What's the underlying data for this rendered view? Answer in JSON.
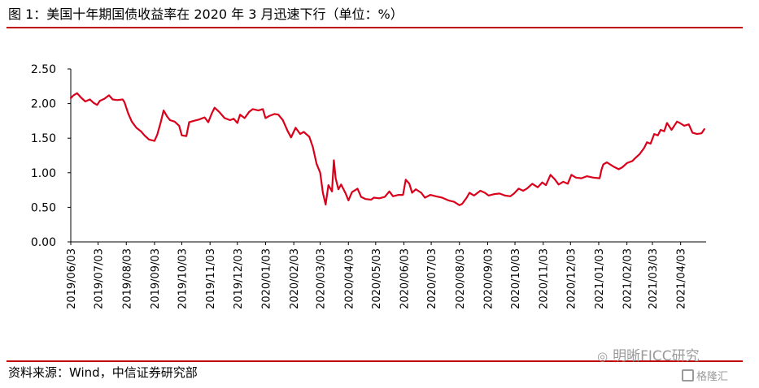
{
  "title": "图 1：美国十年期国债收益率在 2020 年 3 月迅速下行（单位：%）",
  "source": "资料来源：Wind，中信证券研究部",
  "watermark": {
    "account": "明晰FICC研究",
    "platform": "格隆汇"
  },
  "colors": {
    "accent": "#c00000",
    "series": "#d9001b"
  },
  "chart_data": {
    "type": "line",
    "title": "美国十年期国债收益率在 2020 年 3 月迅速下行",
    "xlabel": "",
    "ylabel": "",
    "unit": "%",
    "ylim": [
      0,
      2.5
    ],
    "yticks": [
      "0.00",
      "0.50",
      "1.00",
      "1.50",
      "2.00",
      "2.50"
    ],
    "xticks": [
      "2019/06/03",
      "2019/07/03",
      "2019/08/03",
      "2019/09/03",
      "2019/10/03",
      "2019/11/03",
      "2019/12/03",
      "2020/01/03",
      "2020/02/03",
      "2020/03/03",
      "2020/04/03",
      "2020/05/03",
      "2020/06/03",
      "2020/07/03",
      "2020/08/03",
      "2020/09/03",
      "2020/10/03",
      "2020/11/03",
      "2020/12/03",
      "2021/01/03",
      "2021/02/03",
      "2021/03/03",
      "2021/04/03"
    ],
    "x_end": "2021/05/01",
    "grid": false,
    "legend": "none",
    "series": [
      {
        "values": [
          [
            "2019/06/03",
            2.08
          ],
          [
            "2019/06/06",
            2.12
          ],
          [
            "2019/06/10",
            2.15
          ],
          [
            "2019/06/14",
            2.09
          ],
          [
            "2019/06/19",
            2.03
          ],
          [
            "2019/06/24",
            2.06
          ],
          [
            "2019/06/28",
            2.01
          ],
          [
            "2019/07/02",
            1.98
          ],
          [
            "2019/07/05",
            2.04
          ],
          [
            "2019/07/10",
            2.07
          ],
          [
            "2019/07/15",
            2.12
          ],
          [
            "2019/07/19",
            2.06
          ],
          [
            "2019/07/24",
            2.05
          ],
          [
            "2019/07/30",
            2.06
          ],
          [
            "2019/08/01",
            2.02
          ],
          [
            "2019/08/05",
            1.86
          ],
          [
            "2019/08/09",
            1.74
          ],
          [
            "2019/08/14",
            1.65
          ],
          [
            "2019/08/19",
            1.6
          ],
          [
            "2019/08/23",
            1.54
          ],
          [
            "2019/08/28",
            1.48
          ],
          [
            "2019/09/03",
            1.46
          ],
          [
            "2019/09/06",
            1.55
          ],
          [
            "2019/09/10",
            1.74
          ],
          [
            "2019/09/13",
            1.9
          ],
          [
            "2019/09/17",
            1.81
          ],
          [
            "2019/09/20",
            1.76
          ],
          [
            "2019/09/25",
            1.74
          ],
          [
            "2019/09/30",
            1.68
          ],
          [
            "2019/10/03",
            1.54
          ],
          [
            "2019/10/08",
            1.53
          ],
          [
            "2019/10/11",
            1.73
          ],
          [
            "2019/10/16",
            1.75
          ],
          [
            "2019/10/22",
            1.77
          ],
          [
            "2019/10/28",
            1.8
          ],
          [
            "2019/11/01",
            1.73
          ],
          [
            "2019/11/05",
            1.86
          ],
          [
            "2019/11/08",
            1.94
          ],
          [
            "2019/11/13",
            1.88
          ],
          [
            "2019/11/19",
            1.79
          ],
          [
            "2019/11/25",
            1.76
          ],
          [
            "2019/11/29",
            1.78
          ],
          [
            "2019/12/03",
            1.72
          ],
          [
            "2019/12/06",
            1.84
          ],
          [
            "2019/12/11",
            1.79
          ],
          [
            "2019/12/16",
            1.88
          ],
          [
            "2019/12/20",
            1.92
          ],
          [
            "2019/12/26",
            1.9
          ],
          [
            "2019/12/31",
            1.92
          ],
          [
            "2020/01/03",
            1.79
          ],
          [
            "2020/01/07",
            1.82
          ],
          [
            "2020/01/13",
            1.85
          ],
          [
            "2020/01/17",
            1.84
          ],
          [
            "2020/01/22",
            1.76
          ],
          [
            "2020/01/27",
            1.61
          ],
          [
            "2020/01/31",
            1.51
          ],
          [
            "2020/02/05",
            1.65
          ],
          [
            "2020/02/10",
            1.56
          ],
          [
            "2020/02/14",
            1.59
          ],
          [
            "2020/02/20",
            1.52
          ],
          [
            "2020/02/24",
            1.37
          ],
          [
            "2020/02/28",
            1.13
          ],
          [
            "2020/03/03",
            1.0
          ],
          [
            "2020/03/06",
            0.71
          ],
          [
            "2020/03/09",
            0.54
          ],
          [
            "2020/03/12",
            0.82
          ],
          [
            "2020/03/16",
            0.73
          ],
          [
            "2020/03/18",
            1.18
          ],
          [
            "2020/03/20",
            0.92
          ],
          [
            "2020/03/23",
            0.76
          ],
          [
            "2020/03/26",
            0.83
          ],
          [
            "2020/03/31",
            0.7
          ],
          [
            "2020/04/03",
            0.6
          ],
          [
            "2020/04/07",
            0.72
          ],
          [
            "2020/04/13",
            0.77
          ],
          [
            "2020/04/17",
            0.65
          ],
          [
            "2020/04/22",
            0.62
          ],
          [
            "2020/04/28",
            0.61
          ],
          [
            "2020/05/01",
            0.64
          ],
          [
            "2020/05/07",
            0.63
          ],
          [
            "2020/05/13",
            0.65
          ],
          [
            "2020/05/18",
            0.73
          ],
          [
            "2020/05/22",
            0.66
          ],
          [
            "2020/05/28",
            0.68
          ],
          [
            "2020/06/02",
            0.68
          ],
          [
            "2020/06/05",
            0.9
          ],
          [
            "2020/06/09",
            0.84
          ],
          [
            "2020/06/12",
            0.71
          ],
          [
            "2020/06/16",
            0.76
          ],
          [
            "2020/06/22",
            0.71
          ],
          [
            "2020/06/26",
            0.64
          ],
          [
            "2020/07/02",
            0.68
          ],
          [
            "2020/07/08",
            0.66
          ],
          [
            "2020/07/15",
            0.64
          ],
          [
            "2020/07/22",
            0.6
          ],
          [
            "2020/07/28",
            0.58
          ],
          [
            "2020/08/03",
            0.53
          ],
          [
            "2020/08/06",
            0.55
          ],
          [
            "2020/08/11",
            0.64
          ],
          [
            "2020/08/14",
            0.71
          ],
          [
            "2020/08/19",
            0.67
          ],
          [
            "2020/08/26",
            0.74
          ],
          [
            "2020/08/31",
            0.71
          ],
          [
            "2020/09/04",
            0.67
          ],
          [
            "2020/09/10",
            0.69
          ],
          [
            "2020/09/16",
            0.7
          ],
          [
            "2020/09/22",
            0.67
          ],
          [
            "2020/09/28",
            0.66
          ],
          [
            "2020/10/02",
            0.7
          ],
          [
            "2020/10/07",
            0.77
          ],
          [
            "2020/10/12",
            0.74
          ],
          [
            "2020/10/16",
            0.77
          ],
          [
            "2020/10/22",
            0.84
          ],
          [
            "2020/10/28",
            0.79
          ],
          [
            "2020/11/02",
            0.86
          ],
          [
            "2020/11/06",
            0.82
          ],
          [
            "2020/11/11",
            0.97
          ],
          [
            "2020/11/16",
            0.9
          ],
          [
            "2020/11/20",
            0.83
          ],
          [
            "2020/11/25",
            0.87
          ],
          [
            "2020/11/30",
            0.84
          ],
          [
            "2020/12/04",
            0.97
          ],
          [
            "2020/12/09",
            0.93
          ],
          [
            "2020/12/15",
            0.92
          ],
          [
            "2020/12/21",
            0.95
          ],
          [
            "2020/12/28",
            0.93
          ],
          [
            "2021/01/04",
            0.92
          ],
          [
            "2021/01/06",
            1.04
          ],
          [
            "2021/01/08",
            1.12
          ],
          [
            "2021/01/12",
            1.15
          ],
          [
            "2021/01/19",
            1.09
          ],
          [
            "2021/01/25",
            1.05
          ],
          [
            "2021/01/29",
            1.08
          ],
          [
            "2021/02/03",
            1.14
          ],
          [
            "2021/02/09",
            1.17
          ],
          [
            "2021/02/12",
            1.21
          ],
          [
            "2021/02/17",
            1.27
          ],
          [
            "2021/02/22",
            1.36
          ],
          [
            "2021/02/25",
            1.44
          ],
          [
            "2021/03/01",
            1.42
          ],
          [
            "2021/03/05",
            1.56
          ],
          [
            "2021/03/09",
            1.54
          ],
          [
            "2021/03/12",
            1.62
          ],
          [
            "2021/03/16",
            1.6
          ],
          [
            "2021/03/19",
            1.72
          ],
          [
            "2021/03/24",
            1.62
          ],
          [
            "2021/03/30",
            1.74
          ],
          [
            "2021/04/02",
            1.72
          ],
          [
            "2021/04/07",
            1.68
          ],
          [
            "2021/04/12",
            1.7
          ],
          [
            "2021/04/16",
            1.58
          ],
          [
            "2021/04/21",
            1.56
          ],
          [
            "2021/04/26",
            1.57
          ],
          [
            "2021/04/29",
            1.63
          ]
        ]
      }
    ]
  }
}
